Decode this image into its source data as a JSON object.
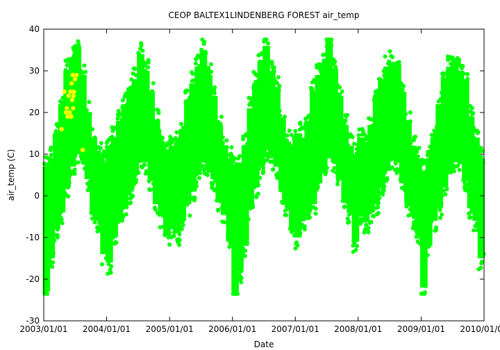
{
  "chart_data": {
    "type": "scatter",
    "title": "CEOP BALTEX1LINDENBERG FOREST  air_temp",
    "xlabel": "Date",
    "ylabel": "air_temp (C)",
    "ylim": [
      -30,
      40
    ],
    "xlim": [
      "2003/01/01",
      "2010/01/01"
    ],
    "x_ticks": [
      "2003/01/01",
      "2004/01/01",
      "2005/01/01",
      "2006/01/01",
      "2007/01/01",
      "2008/01/01",
      "2009/01/01",
      "2010/01/01"
    ],
    "y_ticks": [
      -30,
      -20,
      -10,
      0,
      10,
      20,
      30,
      40
    ],
    "grid": false,
    "legend": "none",
    "colors": {
      "primary_series": "#00ff00",
      "flagged_series": "#ffff00"
    },
    "series": [
      {
        "marker_color": "#00ff00",
        "x": [
          "2003/01/01",
          "2003/02/01",
          "2003/03/01",
          "2003/04/01",
          "2003/05/01",
          "2003/06/01",
          "2003/07/01",
          "2003/08/01",
          "2003/09/01",
          "2003/10/01",
          "2003/11/01",
          "2003/12/01",
          "2004/01/01",
          "2004/02/01",
          "2004/03/01",
          "2004/04/01",
          "2004/05/01",
          "2004/06/01",
          "2004/07/01",
          "2004/08/01",
          "2004/09/01",
          "2004/10/01",
          "2004/11/01",
          "2004/12/01",
          "2005/01/01",
          "2005/02/01",
          "2005/03/01",
          "2005/04/01",
          "2005/05/01",
          "2005/06/01",
          "2005/07/01",
          "2005/08/01",
          "2005/09/01",
          "2005/10/01",
          "2005/11/01",
          "2005/12/01",
          "2006/01/01",
          "2006/02/01",
          "2006/03/01",
          "2006/04/01",
          "2006/05/01",
          "2006/06/01",
          "2006/07/01",
          "2006/08/01",
          "2006/09/01",
          "2006/10/01",
          "2006/11/01",
          "2006/12/01",
          "2007/01/01",
          "2007/02/01",
          "2007/03/01",
          "2007/04/01",
          "2007/05/01",
          "2007/06/01",
          "2007/07/01",
          "2007/08/01",
          "2007/09/01",
          "2007/10/01",
          "2007/11/01",
          "2007/12/01",
          "2008/01/01",
          "2008/02/01",
          "2008/03/01",
          "2008/04/01",
          "2008/05/01",
          "2008/06/01",
          "2008/07/01",
          "2008/08/01",
          "2008/09/01",
          "2008/10/01",
          "2008/11/01",
          "2008/12/01",
          "2009/01/01",
          "2009/02/01",
          "2009/03/01",
          "2009/04/01",
          "2009/05/01",
          "2009/06/01",
          "2009/07/01",
          "2009/08/01",
          "2009/09/01",
          "2009/10/01",
          "2009/11/01",
          "2009/12/01"
        ],
        "y_min": [
          -23,
          -15,
          -8,
          -4,
          2,
          7,
          10,
          9,
          4,
          -4,
          -6,
          -14,
          -16,
          -10,
          -6,
          -3,
          1,
          5,
          8,
          8,
          4,
          -2,
          -5,
          -9,
          -8,
          -9,
          -6,
          -2,
          1,
          5,
          8,
          6,
          4,
          -1,
          -4,
          -11,
          -23,
          -18,
          -12,
          -3,
          2,
          7,
          11,
          9,
          7,
          1,
          -2,
          -8,
          -10,
          -6,
          -4,
          -2,
          3,
          7,
          9,
          8,
          4,
          -1,
          -4,
          -11,
          -5,
          -6,
          -4,
          -2,
          2,
          6,
          9,
          8,
          3,
          -2,
          -5,
          -9,
          -22,
          -12,
          -6,
          -3,
          2,
          6,
          8,
          8,
          4,
          -3,
          -6,
          -15
        ],
        "y_max": [
          7,
          9,
          15,
          22,
          30,
          33,
          36,
          29,
          20,
          14,
          10,
          8,
          12,
          14,
          18,
          22,
          26,
          28,
          34,
          30,
          25,
          18,
          13,
          10,
          12,
          13,
          16,
          23,
          27,
          31,
          35,
          29,
          24,
          17,
          12,
          9,
          7,
          8,
          12,
          21,
          27,
          32,
          36,
          30,
          26,
          18,
          13,
          12,
          15,
          14,
          18,
          25,
          29,
          32,
          37,
          30,
          24,
          17,
          12,
          10,
          14,
          13,
          17,
          24,
          28,
          31,
          32,
          31,
          25,
          18,
          12,
          9,
          6,
          9,
          14,
          22,
          28,
          31,
          32,
          30,
          28,
          19,
          14,
          9
        ]
      },
      {
        "marker_color": "#ffff00",
        "x": [
          "2003/04/15",
          "2003/05/01",
          "2003/05/10",
          "2003/05/15",
          "2003/05/20",
          "2003/05/25",
          "2003/06/01",
          "2003/06/05",
          "2003/06/10",
          "2003/06/12",
          "2003/06/15",
          "2003/06/18",
          "2003/06/20",
          "2003/06/22",
          "2003/06/25",
          "2003/07/01",
          "2003/07/10",
          "2003/08/15"
        ],
        "y": [
          16,
          25,
          20,
          21,
          19,
          24,
          20,
          25,
          19,
          27,
          23,
          29,
          21,
          24,
          25,
          28,
          29,
          11
        ]
      }
    ]
  }
}
